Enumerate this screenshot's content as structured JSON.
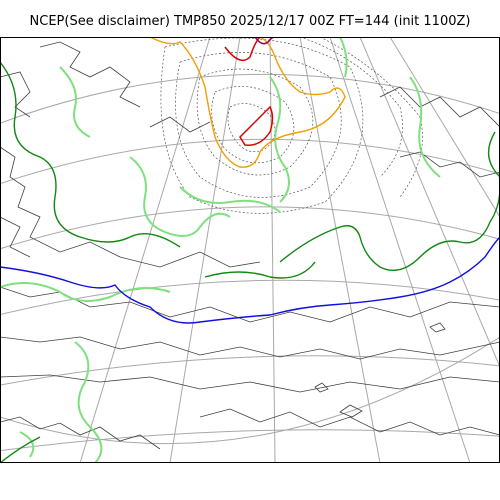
{
  "map": {
    "title": "NCEP(See disclaimer) TMP850 2025/12/17 00Z FT=144 (init 1100Z)",
    "colors": {
      "coastline": "#404040",
      "graticule": "#a8a8a8",
      "isotherm_zero": "#1010e0",
      "isotherm_pos_small": "#118811",
      "isotherm_light": "#7ee07e",
      "isotherm_mid": "#f0a000",
      "isotherm_warm": "#e00000",
      "isotherm_hot": "#9a0060",
      "isotherm_cold": "#555555"
    }
  }
}
